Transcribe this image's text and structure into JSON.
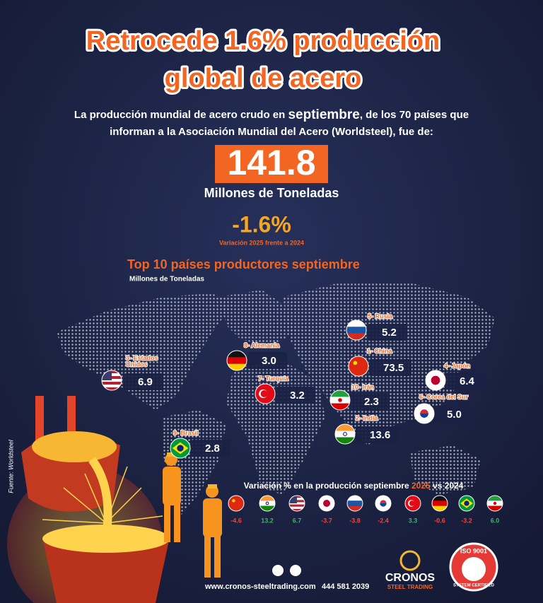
{
  "header": {
    "title_lines": [
      "Retrocede 1.6% producción",
      "global de acero"
    ],
    "intro": {
      "line1_before": "La producción mundial de acero crudo en ",
      "line1_highlight": "septiembre",
      "line1_after": ", de los 70 países que",
      "line2": "informan a la Asociación Mundial del Acero (Worldsteel), fue de:"
    }
  },
  "total": {
    "value": "141.8",
    "unit": "Millones de Toneladas"
  },
  "change": {
    "value": "-1.6%",
    "caption": "Variación 2025 frente a 2024"
  },
  "top10": {
    "title": "Top 10 países productores septiembre",
    "unit": "Millones de Toneladas",
    "countries": [
      {
        "label": [
          "5- Rusia"
        ],
        "value": "5.2"
      },
      {
        "label": [
          "8- Alemania"
        ],
        "value": "3.0"
      },
      {
        "label": [
          "1- China"
        ],
        "value": "73.5"
      },
      {
        "label": [
          "4- Japón"
        ],
        "value": "6.4"
      },
      {
        "label": [
          "3- Estados",
          "Unidos"
        ],
        "value": "6.9"
      },
      {
        "label": [
          "7- Turquía"
        ],
        "value": "3.2"
      },
      {
        "label": [
          "10- Irán"
        ],
        "value": "2.3"
      },
      {
        "label": [
          "6- Corea del Sur"
        ],
        "value": "5.0"
      },
      {
        "label": [
          "2- India"
        ],
        "value": "13.6"
      },
      {
        "label": [
          "9- Brasil"
        ],
        "value": "2.8"
      }
    ]
  },
  "variation": {
    "title_before": "Variación % en la producción septiembre ",
    "title_highlight": "2025",
    "title_after": " vs 2024",
    "values": [
      "-4.6",
      "13.2",
      "6.7",
      "-3.7",
      "-3.8",
      "-2.4",
      "3.3",
      "-0.6",
      "-3.2",
      "6.0"
    ]
  },
  "source": "Fuente: Worldsteel",
  "footer": {
    "website": "www.cronos-steeltrading.com",
    "phone": "444 581 2039",
    "brand": "CRONOS",
    "brand_sub": "STEEL TRADING",
    "iso": "ISO 9001",
    "iso_sub": "SYSTEM CERTIFIED"
  }
}
